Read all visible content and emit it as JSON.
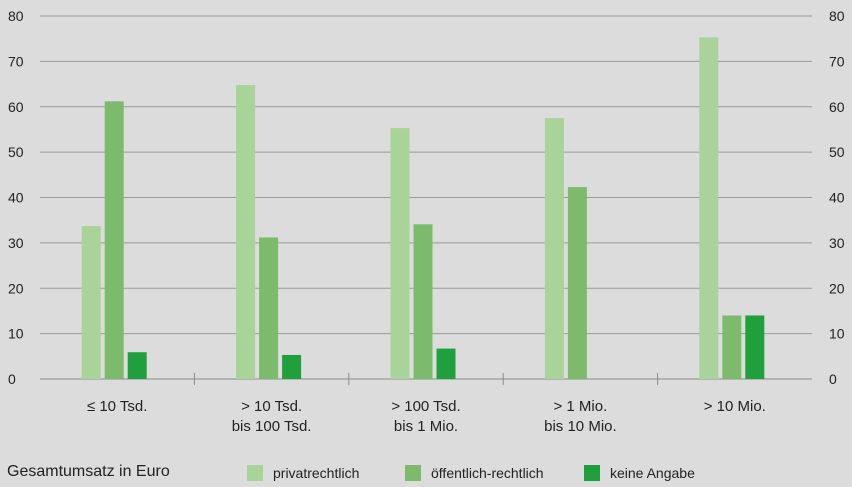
{
  "chart_data": {
    "type": "bar",
    "categories": [
      [
        "≤ 10 Tsd."
      ],
      [
        "> 10 Tsd.",
        "bis 100 Tsd."
      ],
      [
        "> 100 Tsd.",
        "bis 1 Mio."
      ],
      [
        "> 1 Mio.",
        "bis 10 Mio."
      ],
      [
        "> 10 Mio."
      ]
    ],
    "series": [
      {
        "name": "privatrechtlich",
        "color": "#a8d49a",
        "values": [
          33.7,
          64.8,
          55.3,
          57.5,
          75.3
        ]
      },
      {
        "name": "öffentlich-rechtlich",
        "color": "#7cbb6c",
        "values": [
          61.2,
          31.2,
          34.1,
          42.3,
          14.0
        ]
      },
      {
        "name": "keine Angabe",
        "color": "#1fa03c",
        "values": [
          5.9,
          5.3,
          6.7,
          0,
          14.0
        ]
      }
    ],
    "ylim": [
      0,
      80
    ],
    "yticks": [
      0,
      10,
      20,
      30,
      40,
      50,
      60,
      70,
      80
    ],
    "grid": true,
    "legend_position": "bottom",
    "xlabel": "Gesamtumsatz in Euro"
  }
}
